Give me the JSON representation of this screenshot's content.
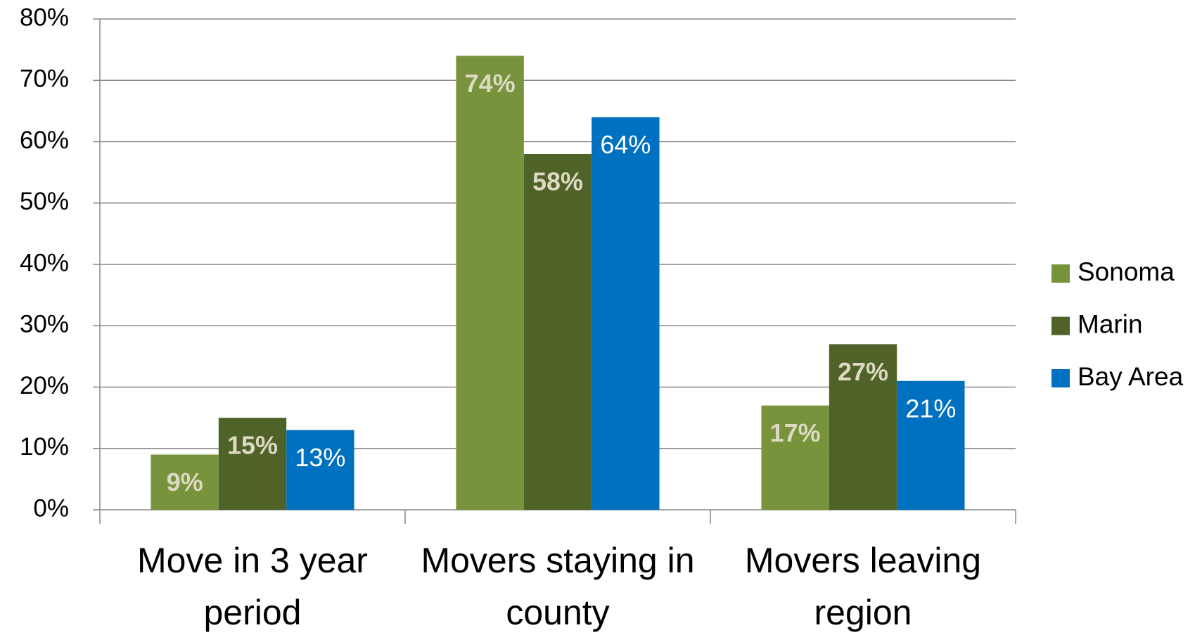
{
  "chart_data": {
    "type": "bar",
    "categories": [
      "Move in 3 year period",
      "Movers staying in county",
      "Movers leaving region"
    ],
    "series": [
      {
        "name": "Sonoma",
        "color": "#77933c",
        "values": [
          9,
          74,
          17
        ],
        "value_labels": [
          "9%",
          "74%",
          "17%"
        ]
      },
      {
        "name": "Marin",
        "color": "#4f6228",
        "values": [
          15,
          58,
          27
        ],
        "value_labels": [
          "15%",
          "58%",
          "27%"
        ]
      },
      {
        "name": "Bay Area",
        "color": "#0070c0",
        "values": [
          13,
          64,
          21
        ],
        "value_labels": [
          "13%",
          "64%",
          "21%"
        ]
      }
    ],
    "ylim": [
      0,
      80
    ],
    "yticks": [
      {
        "value": 0,
        "label": "0%"
      },
      {
        "value": 10,
        "label": "10%"
      },
      {
        "value": 20,
        "label": "20%"
      },
      {
        "value": 30,
        "label": "30%"
      },
      {
        "value": 40,
        "label": "40%"
      },
      {
        "value": 50,
        "label": "50%"
      },
      {
        "value": 60,
        "label": "60%"
      },
      {
        "value": 70,
        "label": "70%"
      },
      {
        "value": 80,
        "label": "80%"
      }
    ],
    "grid": true,
    "legend": "right"
  }
}
